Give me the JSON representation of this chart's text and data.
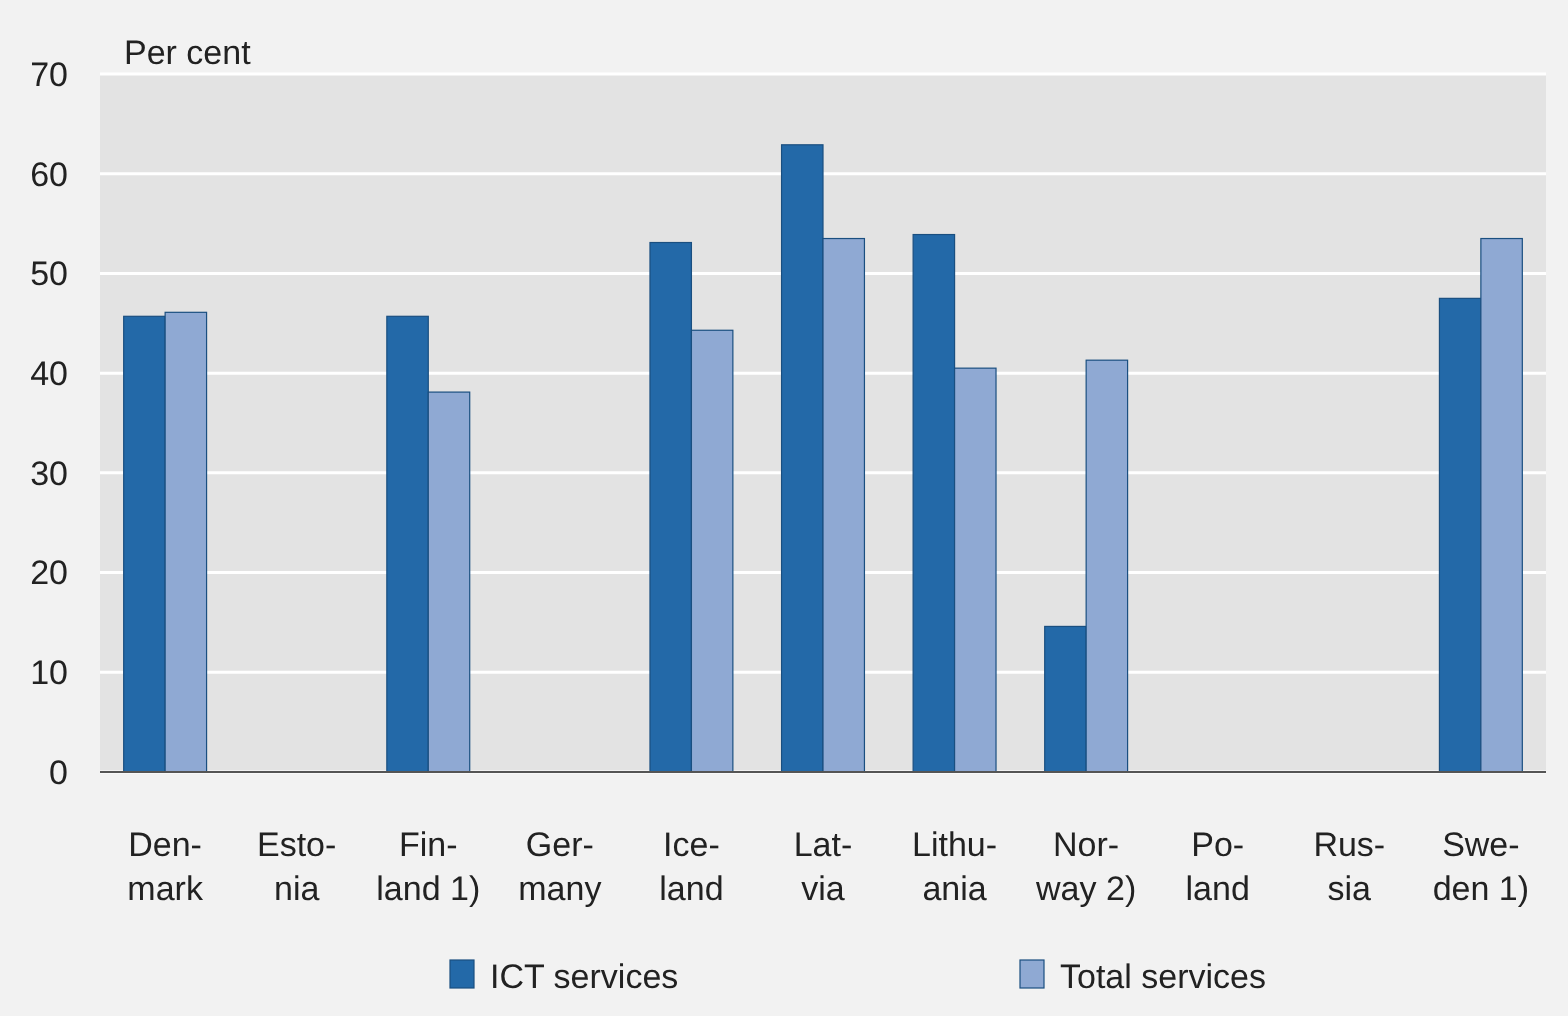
{
  "chart_data": {
    "type": "bar",
    "ylabel": "Per cent",
    "categories": [
      "Den-\nmark",
      "Esto-\nnia",
      "Fin-\nland 1)",
      "Ger-\nmany",
      "Ice-\nland",
      "Lat-\nvia",
      "Lithu-\nania",
      "Nor-\nway 2)",
      "Po-\nland",
      "Rus-\nsia",
      "Swe-\nden 1)"
    ],
    "series": [
      {
        "name": "ICT services",
        "color": "#2369a8",
        "values": [
          45.7,
          null,
          45.7,
          null,
          53.1,
          62.9,
          53.9,
          14.6,
          null,
          null,
          47.5
        ]
      },
      {
        "name": "Total services",
        "color": "#8fa9d3",
        "values": [
          46.1,
          null,
          38.1,
          null,
          44.3,
          53.5,
          40.5,
          41.3,
          null,
          null,
          53.5
        ]
      }
    ],
    "ylim": [
      0,
      70
    ],
    "yticks": [
      0,
      10,
      20,
      30,
      40,
      50,
      60,
      70
    ],
    "grid": "y",
    "legend": "bottom"
  }
}
